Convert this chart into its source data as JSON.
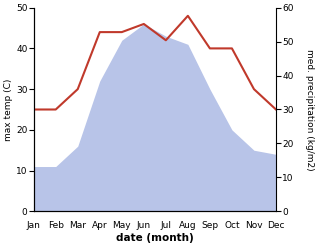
{
  "months": [
    "Jan",
    "Feb",
    "Mar",
    "Apr",
    "May",
    "Jun",
    "Jul",
    "Aug",
    "Sep",
    "Oct",
    "Nov",
    "Dec"
  ],
  "temperature": [
    25,
    25,
    30,
    44,
    44,
    46,
    42,
    48,
    40,
    40,
    30,
    25
  ],
  "precipitation_left_scale": [
    11,
    11,
    16,
    32,
    42,
    46,
    43,
    41,
    30,
    20,
    15,
    14
  ],
  "temp_color": "#c0392b",
  "precip_fill_color": "#b8c4e8",
  "temp_ylim": [
    0,
    50
  ],
  "precip_ylim": [
    0,
    60
  ],
  "temp_yticks": [
    0,
    10,
    20,
    30,
    40,
    50
  ],
  "precip_yticks": [
    0,
    10,
    20,
    30,
    40,
    50,
    60
  ],
  "ylabel_left": "max temp (C)",
  "ylabel_right": "med. precipitation (kg/m2)",
  "xlabel": "date (month)",
  "figsize": [
    3.18,
    2.47
  ],
  "dpi": 100
}
